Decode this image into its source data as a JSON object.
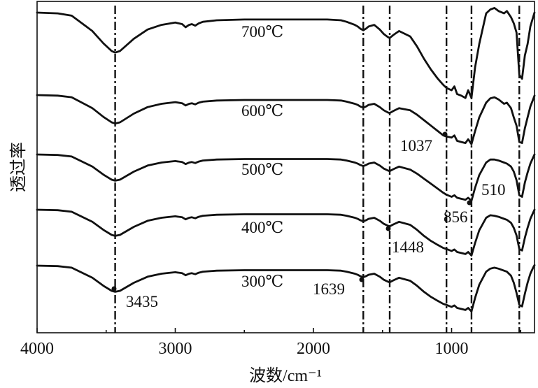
{
  "chart_data": {
    "type": "line",
    "title": "",
    "xlabel": "波数/cm⁻¹",
    "ylabel": "透过率",
    "xlim": [
      4000,
      400
    ],
    "x_reversed": true,
    "x_ticks": [
      4000,
      3000,
      2000,
      1000
    ],
    "x_tick_labels": [
      "4000",
      "3000",
      "2000",
      "1000"
    ],
    "y_ticks_shown": false,
    "reference_lines": [
      3435,
      1639,
      1448,
      1037,
      856,
      510
    ],
    "annotations": [
      {
        "text": "3435",
        "x": 3435
      },
      {
        "text": "1639",
        "x": 1639
      },
      {
        "text": "1448",
        "x": 1448
      },
      {
        "text": "1037",
        "x": 1037
      },
      {
        "text": "856",
        "x": 856
      },
      {
        "text": "510",
        "x": 510
      }
    ],
    "series": [
      {
        "name": "700℃",
        "x": [
          4000,
          3850,
          3750,
          3600,
          3520,
          3460,
          3435,
          3400,
          3300,
          3200,
          3100,
          3000,
          2950,
          2925,
          2900,
          2880,
          2855,
          2830,
          2800,
          2700,
          2500,
          2300,
          2000,
          1900,
          1800,
          1760,
          1700,
          1680,
          1660,
          1639,
          1620,
          1600,
          1560,
          1520,
          1490,
          1460,
          1448,
          1420,
          1380,
          1300,
          1250,
          1200,
          1150,
          1100,
          1060,
          1037,
          1000,
          980,
          960,
          930,
          900,
          880,
          856,
          830,
          800,
          750,
          720,
          690,
          660,
          620,
          600,
          570,
          550,
          530,
          510,
          490,
          470,
          450,
          430,
          410,
          400
        ],
        "y": [
          0.96,
          0.95,
          0.92,
          0.72,
          0.56,
          0.46,
          0.44,
          0.46,
          0.62,
          0.74,
          0.8,
          0.83,
          0.81,
          0.77,
          0.8,
          0.81,
          0.79,
          0.82,
          0.84,
          0.86,
          0.87,
          0.87,
          0.87,
          0.87,
          0.86,
          0.84,
          0.8,
          0.78,
          0.75,
          0.73,
          0.75,
          0.78,
          0.8,
          0.74,
          0.68,
          0.64,
          0.63,
          0.67,
          0.72,
          0.65,
          0.52,
          0.36,
          0.22,
          0.1,
          0.02,
          -0.02,
          -0.05,
          0.0,
          -0.1,
          -0.12,
          -0.15,
          -0.05,
          -0.15,
          0.25,
          0.55,
          0.95,
          1.0,
          1.02,
          0.98,
          0.95,
          0.98,
          0.9,
          0.82,
          0.7,
          0.15,
          0.1,
          0.4,
          0.55,
          0.78,
          0.9,
          0.96
        ]
      },
      {
        "name": "600℃",
        "x": [
          4000,
          3850,
          3750,
          3600,
          3520,
          3460,
          3435,
          3400,
          3300,
          3200,
          3100,
          3000,
          2950,
          2925,
          2900,
          2880,
          2855,
          2830,
          2800,
          2700,
          2500,
          2300,
          2000,
          1900,
          1800,
          1760,
          1700,
          1680,
          1660,
          1639,
          1620,
          1600,
          1560,
          1520,
          1490,
          1460,
          1448,
          1420,
          1380,
          1300,
          1250,
          1200,
          1150,
          1100,
          1060,
          1037,
          1000,
          980,
          960,
          930,
          900,
          880,
          856,
          830,
          800,
          750,
          720,
          690,
          660,
          620,
          600,
          570,
          550,
          530,
          510,
          490,
          470,
          450,
          430,
          410,
          400
        ],
        "y": [
          0.96,
          0.95,
          0.92,
          0.72,
          0.56,
          0.46,
          0.44,
          0.46,
          0.62,
          0.74,
          0.8,
          0.83,
          0.81,
          0.77,
          0.8,
          0.81,
          0.79,
          0.82,
          0.84,
          0.86,
          0.87,
          0.87,
          0.87,
          0.87,
          0.86,
          0.84,
          0.8,
          0.78,
          0.75,
          0.73,
          0.75,
          0.78,
          0.8,
          0.74,
          0.68,
          0.64,
          0.63,
          0.67,
          0.72,
          0.68,
          0.6,
          0.5,
          0.4,
          0.3,
          0.22,
          0.2,
          0.18,
          0.22,
          0.12,
          0.1,
          0.08,
          0.15,
          0.06,
          0.3,
          0.55,
          0.82,
          0.9,
          0.92,
          0.88,
          0.8,
          0.82,
          0.72,
          0.55,
          0.4,
          0.1,
          0.08,
          0.35,
          0.55,
          0.75,
          0.88,
          0.95
        ]
      },
      {
        "name": "500℃",
        "x": [
          4000,
          3850,
          3750,
          3600,
          3520,
          3460,
          3435,
          3400,
          3300,
          3200,
          3100,
          3000,
          2950,
          2925,
          2900,
          2880,
          2855,
          2830,
          2800,
          2700,
          2500,
          2300,
          2000,
          1900,
          1800,
          1760,
          1700,
          1680,
          1660,
          1639,
          1620,
          1600,
          1560,
          1520,
          1490,
          1460,
          1448,
          1420,
          1380,
          1300,
          1250,
          1200,
          1150,
          1100,
          1060,
          1037,
          1000,
          980,
          960,
          930,
          900,
          880,
          856,
          830,
          800,
          750,
          720,
          690,
          660,
          620,
          600,
          570,
          550,
          530,
          510,
          490,
          470,
          450,
          430,
          410,
          400
        ],
        "y": [
          0.96,
          0.95,
          0.92,
          0.72,
          0.56,
          0.46,
          0.44,
          0.46,
          0.62,
          0.74,
          0.8,
          0.83,
          0.81,
          0.77,
          0.8,
          0.81,
          0.79,
          0.82,
          0.84,
          0.86,
          0.87,
          0.87,
          0.87,
          0.87,
          0.86,
          0.84,
          0.8,
          0.78,
          0.75,
          0.73,
          0.75,
          0.78,
          0.8,
          0.74,
          0.68,
          0.64,
          0.63,
          0.67,
          0.72,
          0.66,
          0.58,
          0.48,
          0.38,
          0.28,
          0.2,
          0.16,
          0.12,
          0.15,
          0.1,
          0.08,
          0.06,
          0.1,
          0.04,
          0.3,
          0.55,
          0.8,
          0.86,
          0.86,
          0.84,
          0.8,
          0.78,
          0.72,
          0.62,
          0.45,
          0.15,
          0.12,
          0.4,
          0.6,
          0.78,
          0.9,
          0.96
        ]
      },
      {
        "name": "400℃",
        "x": [
          4000,
          3850,
          3750,
          3600,
          3520,
          3460,
          3435,
          3400,
          3300,
          3200,
          3100,
          3000,
          2950,
          2925,
          2900,
          2880,
          2855,
          2830,
          2800,
          2700,
          2500,
          2300,
          2000,
          1900,
          1800,
          1760,
          1700,
          1680,
          1660,
          1639,
          1620,
          1600,
          1560,
          1520,
          1490,
          1460,
          1448,
          1420,
          1380,
          1300,
          1250,
          1200,
          1150,
          1100,
          1060,
          1037,
          1000,
          980,
          960,
          930,
          900,
          880,
          856,
          830,
          800,
          750,
          720,
          690,
          660,
          620,
          600,
          570,
          550,
          530,
          510,
          490,
          470,
          450,
          430,
          410,
          400
        ],
        "y": [
          0.96,
          0.95,
          0.92,
          0.72,
          0.56,
          0.46,
          0.44,
          0.46,
          0.62,
          0.74,
          0.8,
          0.83,
          0.81,
          0.77,
          0.8,
          0.81,
          0.79,
          0.82,
          0.84,
          0.86,
          0.87,
          0.87,
          0.87,
          0.87,
          0.86,
          0.84,
          0.8,
          0.78,
          0.75,
          0.73,
          0.75,
          0.78,
          0.8,
          0.74,
          0.68,
          0.64,
          0.63,
          0.67,
          0.72,
          0.66,
          0.56,
          0.44,
          0.34,
          0.26,
          0.2,
          0.18,
          0.14,
          0.17,
          0.12,
          0.1,
          0.08,
          0.12,
          0.05,
          0.3,
          0.55,
          0.8,
          0.85,
          0.84,
          0.82,
          0.78,
          0.76,
          0.7,
          0.6,
          0.45,
          0.18,
          0.15,
          0.4,
          0.6,
          0.78,
          0.9,
          0.96
        ]
      },
      {
        "name": "300℃",
        "x": [
          4000,
          3850,
          3750,
          3600,
          3520,
          3460,
          3435,
          3400,
          3300,
          3200,
          3100,
          3000,
          2950,
          2925,
          2900,
          2880,
          2855,
          2830,
          2800,
          2700,
          2500,
          2300,
          2000,
          1900,
          1800,
          1760,
          1700,
          1680,
          1660,
          1639,
          1620,
          1600,
          1560,
          1520,
          1490,
          1460,
          1448,
          1420,
          1380,
          1300,
          1250,
          1200,
          1150,
          1100,
          1060,
          1037,
          1000,
          980,
          960,
          930,
          900,
          880,
          856,
          830,
          800,
          750,
          720,
          690,
          660,
          620,
          600,
          570,
          550,
          530,
          510,
          490,
          470,
          450,
          430,
          410,
          400
        ],
        "y": [
          0.96,
          0.95,
          0.92,
          0.72,
          0.56,
          0.46,
          0.44,
          0.46,
          0.62,
          0.74,
          0.8,
          0.83,
          0.81,
          0.77,
          0.8,
          0.81,
          0.79,
          0.82,
          0.84,
          0.86,
          0.87,
          0.87,
          0.87,
          0.87,
          0.86,
          0.84,
          0.8,
          0.78,
          0.75,
          0.73,
          0.75,
          0.78,
          0.8,
          0.74,
          0.68,
          0.64,
          0.63,
          0.67,
          0.72,
          0.66,
          0.56,
          0.44,
          0.34,
          0.26,
          0.2,
          0.18,
          0.14,
          0.17,
          0.12,
          0.1,
          0.08,
          0.12,
          0.05,
          0.32,
          0.58,
          0.84,
          0.9,
          0.92,
          0.9,
          0.86,
          0.84,
          0.76,
          0.62,
          0.42,
          0.18,
          0.15,
          0.4,
          0.62,
          0.8,
          0.92,
          0.97
        ]
      }
    ]
  }
}
